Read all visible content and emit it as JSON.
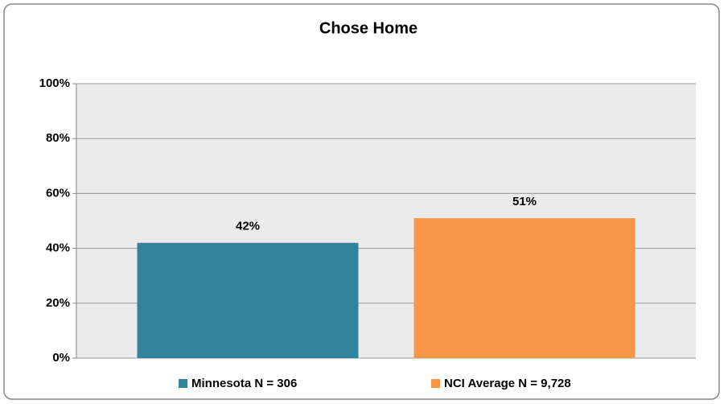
{
  "chart_data": {
    "type": "bar",
    "title": "Chose Home",
    "categories": [
      null
    ],
    "series": [
      {
        "name": "Minnesota N = 306",
        "color": "#31849b",
        "values": [
          42
        ],
        "value_labels": [
          "42%"
        ]
      },
      {
        "name": "NCI Average N = 9,728",
        "color": "#f79646",
        "values": [
          51
        ],
        "value_labels": [
          "51%"
        ]
      }
    ],
    "ylim": [
      0,
      100
    ],
    "yticks": [
      {
        "value": 0,
        "label": "0%"
      },
      {
        "value": 20,
        "label": "20%"
      },
      {
        "value": 40,
        "label": "40%"
      },
      {
        "value": 60,
        "label": "60%"
      },
      {
        "value": 80,
        "label": "80%"
      },
      {
        "value": 100,
        "label": "100%"
      }
    ],
    "grid": true,
    "legend": "bottom"
  }
}
